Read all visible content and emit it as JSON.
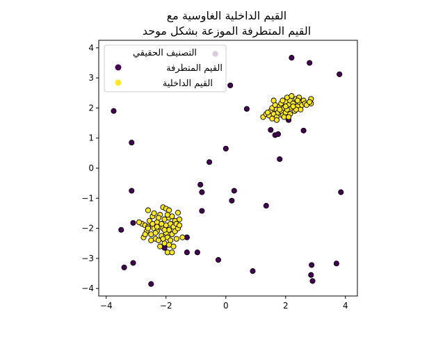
{
  "chart_data": {
    "type": "scatter",
    "title_lines": [
      "القيم الداخلية الغاوسية مع",
      "القيم المتطرفة الموزعة بشكل موحد"
    ],
    "xlabel": "",
    "ylabel": "",
    "xlim": [
      -4.25,
      4.4
    ],
    "ylim": [
      -4.25,
      4.25
    ],
    "xticks": [
      {
        "value": -4,
        "label": "−4"
      },
      {
        "value": -2,
        "label": "−2"
      },
      {
        "value": 0,
        "label": "0"
      },
      {
        "value": 2,
        "label": "2"
      },
      {
        "value": 4,
        "label": "4"
      }
    ],
    "yticks": [
      {
        "value": 4,
        "label": "4"
      },
      {
        "value": 3,
        "label": "3"
      },
      {
        "value": 2,
        "label": "2"
      },
      {
        "value": 1,
        "label": "1"
      },
      {
        "value": 0,
        "label": "0"
      },
      {
        "value": -1,
        "label": "−1"
      },
      {
        "value": -2,
        "label": "−2"
      },
      {
        "value": -3,
        "label": "−3"
      },
      {
        "value": -4,
        "label": "−4"
      }
    ],
    "grid": false,
    "legend": {
      "title": "التصنيف الحقيقي",
      "placement": "top-left",
      "entries": [
        {
          "label": "القيم المتطرفة",
          "series": "outliers"
        },
        {
          "label": "القيم الداخلية",
          "series": "inliers"
        }
      ]
    },
    "colors": {
      "outliers": "#440154",
      "inliers": "#fde725",
      "edge": "#000000"
    },
    "series": [
      {
        "key": "outliers",
        "color": "#440154",
        "points": [
          [
            -3.75,
            1.9
          ],
          [
            -3.15,
            0.85
          ],
          [
            -3.15,
            -0.75
          ],
          [
            -3.1,
            -1.82
          ],
          [
            -3.5,
            -2.05
          ],
          [
            -3.4,
            -3.3
          ],
          [
            -3.1,
            -3.15
          ],
          [
            -2.05,
            -2.65
          ],
          [
            -2.5,
            -3.85
          ],
          [
            -1.3,
            -2.8
          ],
          [
            -0.95,
            -2.8
          ],
          [
            -1.3,
            -2.3
          ],
          [
            -0.8,
            -0.8
          ],
          [
            -0.85,
            -0.55
          ],
          [
            -0.8,
            -1.42
          ],
          [
            -0.55,
            0.2
          ],
          [
            0.0,
            0.65
          ],
          [
            0.15,
            2.75
          ],
          [
            0.2,
            -1.08
          ],
          [
            0.28,
            -0.75
          ],
          [
            -0.25,
            -3.05
          ],
          [
            0.7,
            1.97
          ],
          [
            0.9,
            -3.42
          ],
          [
            1.35,
            -1.25
          ],
          [
            1.5,
            1.27
          ],
          [
            1.65,
            1.1
          ],
          [
            1.75,
            1.13
          ],
          [
            1.8,
            0.3
          ],
          [
            2.1,
            1.6
          ],
          [
            2.2,
            3.67
          ],
          [
            2.6,
            1.25
          ],
          [
            2.8,
            3.5
          ],
          [
            2.87,
            -3.22
          ],
          [
            2.85,
            -3.55
          ],
          [
            2.9,
            -3.75
          ],
          [
            3.7,
            -3.17
          ],
          [
            3.8,
            3.12
          ],
          [
            3.85,
            -0.8
          ],
          [
            -0.35,
            3.8
          ]
        ]
      },
      {
        "key": "inliers",
        "color": "#fde725",
        "points": [
          [
            -2.8,
            -1.85
          ],
          [
            -2.7,
            -1.9
          ],
          [
            -2.6,
            -1.95
          ],
          [
            -2.75,
            -2.3
          ],
          [
            -2.65,
            -2.1
          ],
          [
            -2.55,
            -1.75
          ],
          [
            -2.5,
            -2.2
          ],
          [
            -2.45,
            -1.6
          ],
          [
            -2.4,
            -2.0
          ],
          [
            -2.35,
            -2.35
          ],
          [
            -2.3,
            -1.8
          ],
          [
            -2.3,
            -2.1
          ],
          [
            -2.25,
            -2.4
          ],
          [
            -2.2,
            -1.55
          ],
          [
            -2.2,
            -1.95
          ],
          [
            -2.15,
            -2.25
          ],
          [
            -2.1,
            -2.0
          ],
          [
            -2.05,
            -1.7
          ],
          [
            -2.05,
            -2.5
          ],
          [
            -2.0,
            -1.9
          ],
          [
            -2.0,
            -2.15
          ],
          [
            -1.95,
            -2.3
          ],
          [
            -1.9,
            -1.65
          ],
          [
            -1.9,
            -2.05
          ],
          [
            -1.85,
            -2.4
          ],
          [
            -1.85,
            -1.85
          ],
          [
            -1.8,
            -2.2
          ],
          [
            -1.75,
            -1.95
          ],
          [
            -1.75,
            -2.6
          ],
          [
            -1.7,
            -1.75
          ],
          [
            -1.7,
            -2.1
          ],
          [
            -1.65,
            -1.85
          ],
          [
            -1.6,
            -2.0
          ],
          [
            -1.55,
            -1.7
          ],
          [
            -1.45,
            -2.3
          ],
          [
            -1.6,
            -1.48
          ],
          [
            -2.1,
            -1.3
          ],
          [
            -2.0,
            -1.35
          ],
          [
            -1.9,
            -1.4
          ],
          [
            -2.6,
            -1.4
          ],
          [
            -2.4,
            -1.5
          ],
          [
            -2.25,
            -1.65
          ],
          [
            -1.95,
            -2.8
          ],
          [
            -1.8,
            -2.8
          ],
          [
            -2.2,
            -2.6
          ],
          [
            -2.5,
            -2.4
          ],
          [
            -2.35,
            -2.15
          ],
          [
            -2.15,
            -1.85
          ],
          [
            -1.95,
            -1.55
          ],
          [
            -2.1,
            -2.35
          ],
          [
            -2.6,
            -2.0
          ],
          [
            -2.9,
            -1.8
          ],
          [
            -1.65,
            -2.35
          ],
          [
            -1.55,
            -1.9
          ],
          [
            -2.05,
            -2.05
          ],
          [
            -2.3,
            -1.95
          ],
          [
            -1.8,
            -1.6
          ],
          [
            -2.7,
            -2.2
          ],
          [
            -2.45,
            -1.85
          ],
          [
            -1.9,
            -2.55
          ],
          [
            1.25,
            1.7
          ],
          [
            1.35,
            1.8
          ],
          [
            1.45,
            1.75
          ],
          [
            1.5,
            1.9
          ],
          [
            1.55,
            2.0
          ],
          [
            1.6,
            1.8
          ],
          [
            1.65,
            2.1
          ],
          [
            1.7,
            1.95
          ],
          [
            1.7,
            1.7
          ],
          [
            1.75,
            1.85
          ],
          [
            1.8,
            2.05
          ],
          [
            1.85,
            1.9
          ],
          [
            1.85,
            2.15
          ],
          [
            1.9,
            1.75
          ],
          [
            1.95,
            2.0
          ],
          [
            2.0,
            2.2
          ],
          [
            2.0,
            1.85
          ],
          [
            2.05,
            1.95
          ],
          [
            2.1,
            2.1
          ],
          [
            2.15,
            1.8
          ],
          [
            2.15,
            2.25
          ],
          [
            2.2,
            2.0
          ],
          [
            2.25,
            2.15
          ],
          [
            2.3,
            1.9
          ],
          [
            2.35,
            2.3
          ],
          [
            2.4,
            2.05
          ],
          [
            2.45,
            2.2
          ],
          [
            2.5,
            1.95
          ],
          [
            2.55,
            2.1
          ],
          [
            2.6,
            2.25
          ],
          [
            2.65,
            2.15
          ],
          [
            2.7,
            2.1
          ],
          [
            2.85,
            2.15
          ],
          [
            2.85,
            2.3
          ],
          [
            2.8,
            2.2
          ],
          [
            1.6,
            2.25
          ],
          [
            1.7,
            1.6
          ],
          [
            1.95,
            1.7
          ],
          [
            2.05,
            2.35
          ],
          [
            2.2,
            2.4
          ],
          [
            2.35,
            1.95
          ],
          [
            2.45,
            2.35
          ],
          [
            1.4,
            1.85
          ],
          [
            1.55,
            1.65
          ],
          [
            1.9,
            2.25
          ],
          [
            2.1,
            1.7
          ],
          [
            2.25,
            2.05
          ],
          [
            2.4,
            2.25
          ],
          [
            1.8,
            1.95
          ],
          [
            2.0,
            2.05
          ]
        ]
      }
    ]
  }
}
